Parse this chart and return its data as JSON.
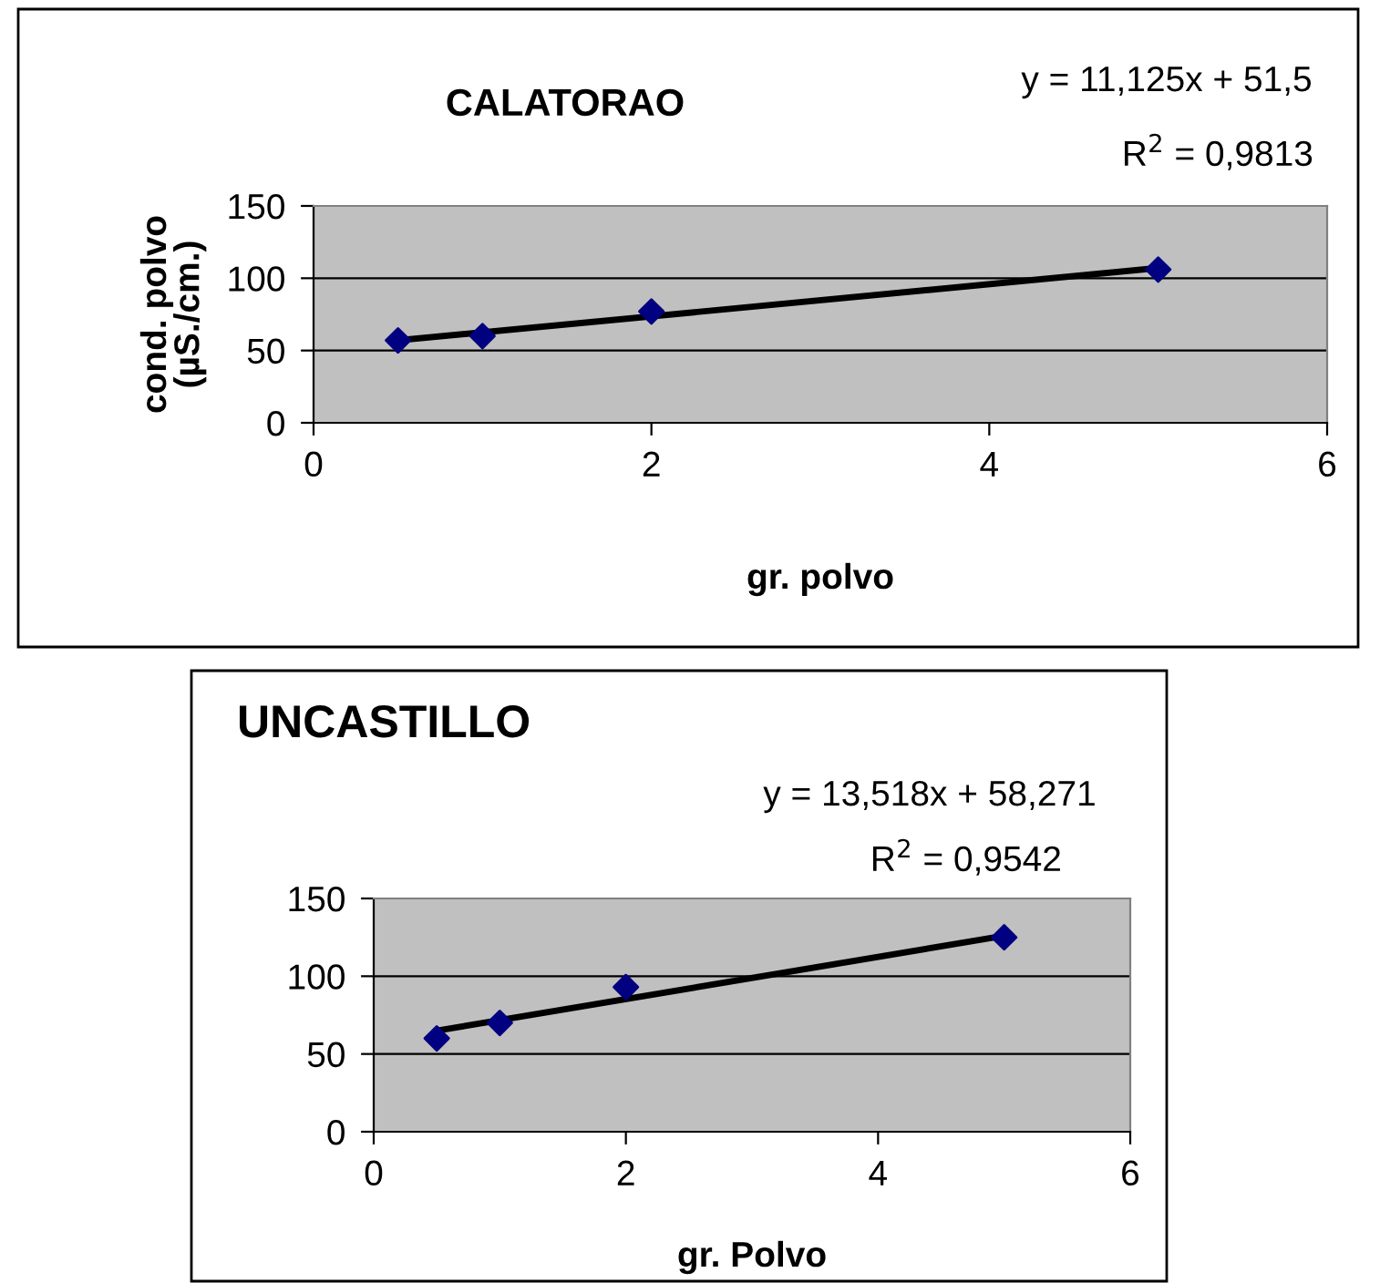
{
  "chart_data": [
    {
      "type": "scatter",
      "title": "CALATORAO",
      "xlabel": "gr. polvo",
      "ylabel": "cond. polvo\n(µS./cm.)",
      "annotations": [
        "y = 11,125x + 51,5",
        "R$^{2}$ = 0,9813"
      ],
      "series": [
        {
          "color": "#000080",
          "marker": "diamond",
          "x": [
            0.5,
            1,
            2,
            5
          ],
          "values": [
            57,
            60,
            77,
            106
          ]
        },
        {
          "type": "line",
          "color": "#000000",
          "marker": "none",
          "line_style": "solid",
          "x": [
            0.5,
            5
          ],
          "values": [
            57,
            107
          ]
        }
      ],
      "xlim": [
        0,
        6
      ],
      "xticks": [
        0,
        2,
        4,
        6
      ],
      "ylim": [
        0,
        150
      ],
      "yticks": [
        0,
        50,
        100,
        150
      ],
      "grid": "y"
    },
    {
      "type": "scatter",
      "title": "UNCASTILLO",
      "xlabel": "gr. Polvo",
      "annotations": [
        "y = 13,518x + 58,271",
        "R$^{2}$ = 0,9542"
      ],
      "series": [
        {
          "color": "#000080",
          "marker": "diamond",
          "x": [
            0.5,
            1,
            2,
            5
          ],
          "values": [
            60,
            70,
            93,
            125
          ]
        },
        {
          "type": "line",
          "color": "#000000",
          "marker": "none",
          "line_style": "solid",
          "x": [
            0.5,
            5
          ],
          "values": [
            65,
            126
          ]
        }
      ],
      "xlim": [
        0,
        6
      ],
      "xticks": [
        0,
        2,
        4,
        6
      ],
      "ylim": [
        0,
        150
      ],
      "yticks": [
        0,
        50,
        100,
        150
      ],
      "grid": "y"
    }
  ]
}
